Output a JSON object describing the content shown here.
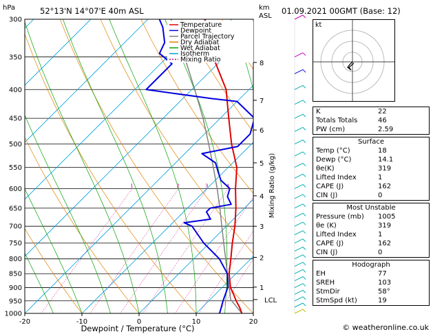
{
  "header": {
    "station": "52°13'N 14°07'E 40m ASL",
    "datetime": "01.09.2021 00GMT (Base: 12)",
    "hpa_label": "hPa",
    "km_label": "km\nASL"
  },
  "legend": [
    {
      "label": "Temperature",
      "color": "#e00000",
      "dash": ""
    },
    {
      "label": "Dewpoint",
      "color": "#0000e0",
      "dash": ""
    },
    {
      "label": "Parcel Trajectory",
      "color": "#808080",
      "dash": ""
    },
    {
      "label": "Dry Adiabat",
      "color": "#e08000",
      "dash": ""
    },
    {
      "label": "Wet Adiabat",
      "color": "#00a000",
      "dash": ""
    },
    {
      "label": "Isotherm",
      "color": "#00a0e0",
      "dash": ""
    },
    {
      "label": "Mixing Ratio",
      "color": "#c0007a",
      "dash": "2,2"
    }
  ],
  "chart_data": {
    "type": "line",
    "xlabel": "Dewpoint / Temperature (°C)",
    "ylabel": "",
    "right_label": "Mixing Ratio (g/kg)",
    "xlim": [
      -35,
      40
    ],
    "pressure_ticks": [
      300,
      350,
      400,
      450,
      500,
      550,
      600,
      650,
      700,
      750,
      800,
      850,
      900,
      950,
      1000
    ],
    "temp_ticks": [
      -30,
      -20,
      -10,
      0,
      10,
      20,
      30,
      40
    ],
    "km_ticks": [
      {
        "km": "8",
        "p": 358
      },
      {
        "km": "7",
        "p": 418
      },
      {
        "km": "6",
        "p": 472
      },
      {
        "km": "5",
        "p": 540
      },
      {
        "km": "4",
        "p": 618
      },
      {
        "km": "3",
        "p": 700
      },
      {
        "km": "2",
        "p": 795
      },
      {
        "km": "1",
        "p": 898
      }
    ],
    "lcl": {
      "label": "LCL",
      "p": 945
    },
    "mixing_ratios": [
      "1",
      "2",
      "3",
      "4",
      "6",
      "8",
      "10",
      "15",
      "20",
      "25"
    ],
    "series": [
      {
        "name": "Temperature",
        "points": [
          [
            1000,
            18
          ],
          [
            975,
            16.5
          ],
          [
            950,
            14.8
          ],
          [
            925,
            13.2
          ],
          [
            900,
            11.5
          ],
          [
            850,
            8.8
          ],
          [
            800,
            6.5
          ],
          [
            750,
            4.0
          ],
          [
            700,
            1.5
          ],
          [
            650,
            -1.5
          ],
          [
            600,
            -5.0
          ],
          [
            550,
            -8.5
          ],
          [
            500,
            -13.5
          ],
          [
            450,
            -18.5
          ],
          [
            400,
            -24.0
          ],
          [
            350,
            -32.0
          ],
          [
            300,
            -40.0
          ]
        ]
      },
      {
        "name": "Dewpoint",
        "points": [
          [
            1000,
            14.1
          ],
          [
            950,
            12.5
          ],
          [
            900,
            11.0
          ],
          [
            850,
            8.5
          ],
          [
            800,
            4.5
          ],
          [
            750,
            -1.0
          ],
          [
            700,
            -6.0
          ],
          [
            690,
            -8
          ],
          [
            680,
            -4
          ],
          [
            660,
            -6
          ],
          [
            650,
            -6
          ],
          [
            640,
            -3
          ],
          [
            620,
            -5
          ],
          [
            600,
            -6
          ],
          [
            580,
            -9
          ],
          [
            560,
            -11
          ],
          [
            540,
            -13
          ],
          [
            520,
            -17
          ],
          [
            505,
            -12
          ],
          [
            480,
            -12
          ],
          [
            450,
            -14
          ],
          [
            420,
            -20
          ],
          [
            415,
            -25
          ],
          [
            400,
            -38
          ],
          [
            380,
            -38
          ],
          [
            360,
            -38
          ],
          [
            345,
            -42
          ],
          [
            330,
            -43
          ],
          [
            310,
            -46
          ],
          [
            300,
            -48
          ]
        ]
      },
      {
        "name": "Parcel Trajectory",
        "points": [
          [
            1000,
            18
          ],
          [
            945,
            13.6
          ],
          [
            900,
            11.3
          ],
          [
            850,
            8.5
          ],
          [
            800,
            5.6
          ],
          [
            750,
            2.5
          ],
          [
            700,
            -0.8
          ],
          [
            650,
            -4.3
          ],
          [
            600,
            -8.2
          ],
          [
            550,
            -12.6
          ],
          [
            500,
            -17.5
          ],
          [
            450,
            -23.0
          ],
          [
            400,
            -29.5
          ],
          [
            350,
            -37.0
          ],
          [
            300,
            -46.0
          ]
        ]
      }
    ]
  },
  "indices": {
    "top": [
      {
        "label": "K",
        "value": "22"
      },
      {
        "label": "Totals Totals",
        "value": "46"
      },
      {
        "label": "PW (cm)",
        "value": "2.59"
      }
    ],
    "surface": {
      "title": "Surface",
      "rows": [
        {
          "label": "Temp (°C)",
          "value": "18"
        },
        {
          "label": "Dewp (°C)",
          "value": "14.1"
        },
        {
          "label": "θe(K)",
          "value": "319"
        },
        {
          "label": "Lifted Index",
          "value": "1"
        },
        {
          "label": "CAPE (J)",
          "value": "162"
        },
        {
          "label": "CIN (J)",
          "value": "0"
        }
      ]
    },
    "most_unstable": {
      "title": "Most Unstable",
      "rows": [
        {
          "label": "Pressure (mb)",
          "value": "1005"
        },
        {
          "label": "θe (K)",
          "value": "319"
        },
        {
          "label": "Lifted Index",
          "value": "1"
        },
        {
          "label": "CAPE (J)",
          "value": "162"
        },
        {
          "label": "CIN (J)",
          "value": "0"
        }
      ]
    },
    "hodograph": {
      "title": "Hodograph",
      "rows": [
        {
          "label": "EH",
          "value": "77"
        },
        {
          "label": "SREH",
          "value": "103"
        },
        {
          "label": "StmDir",
          "value": "58°"
        },
        {
          "label": "StmSpd (kt)",
          "value": "19"
        }
      ]
    }
  },
  "hodo_label": "kt",
  "credit": "© weatheronline.co.uk"
}
